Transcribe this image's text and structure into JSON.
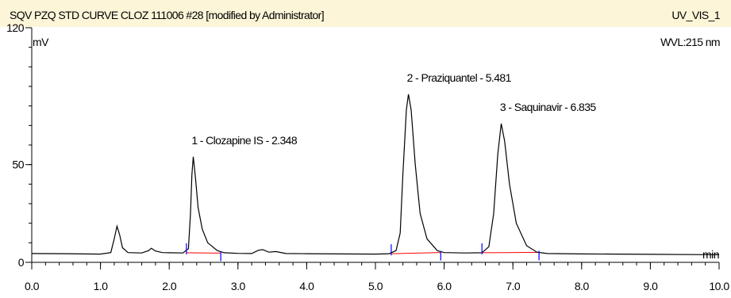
{
  "header": {
    "title": "SQV PZQ STD CURVE CLOZ 111006 #28 [modified by Administrator]",
    "channel": "UV_VIS_1",
    "wavelength": "WVL:215 nm"
  },
  "chart_data": {
    "type": "line",
    "title": "SQV PZQ STD CURVE CLOZ 111006 #28 [modified by Administrator]",
    "ylabel": "mV",
    "xlabel": "min",
    "xlim": [
      0.0,
      10.0
    ],
    "ylim": [
      0,
      120
    ],
    "x_ticks": [
      0.0,
      1.0,
      2.0,
      3.0,
      4.0,
      5.0,
      6.0,
      7.0,
      8.0,
      9.0,
      10.0
    ],
    "x_tick_labels": [
      "0.0",
      "1.0",
      "2.0",
      "3.0",
      "4.0",
      "5.0",
      "6.0",
      "7.0",
      "8.0",
      "9.0",
      "10.0"
    ],
    "y_ticks": [
      0,
      50,
      120
    ],
    "y_tick_labels": [
      "0",
      "50",
      "120"
    ],
    "grid": false,
    "colors": {
      "trace": "#000000",
      "baseline": "#ff0000",
      "marker": "#0000ff",
      "axis": "#000000"
    },
    "series": [
      {
        "name": "UV_VIS_1",
        "points": [
          [
            0.0,
            4.5
          ],
          [
            0.5,
            4.4
          ],
          [
            1.0,
            4.2
          ],
          [
            1.15,
            5.0
          ],
          [
            1.2,
            12.0
          ],
          [
            1.24,
            18.5
          ],
          [
            1.28,
            14.0
          ],
          [
            1.32,
            7.5
          ],
          [
            1.4,
            5.0
          ],
          [
            1.6,
            4.8
          ],
          [
            1.7,
            6.0
          ],
          [
            1.74,
            7.2
          ],
          [
            1.8,
            5.8
          ],
          [
            1.9,
            5.0
          ],
          [
            2.0,
            4.9
          ],
          [
            2.2,
            4.8
          ],
          [
            2.28,
            7.0
          ],
          [
            2.31,
            25.0
          ],
          [
            2.33,
            45.0
          ],
          [
            2.35,
            54.0
          ],
          [
            2.38,
            44.0
          ],
          [
            2.42,
            28.0
          ],
          [
            2.48,
            17.0
          ],
          [
            2.56,
            10.0
          ],
          [
            2.7,
            6.0
          ],
          [
            2.8,
            4.9
          ],
          [
            3.0,
            4.6
          ],
          [
            3.2,
            4.5
          ],
          [
            3.3,
            6.2
          ],
          [
            3.36,
            6.5
          ],
          [
            3.45,
            5.2
          ],
          [
            3.55,
            5.5
          ],
          [
            3.7,
            4.5
          ],
          [
            4.0,
            4.4
          ],
          [
            4.5,
            4.3
          ],
          [
            5.0,
            4.2
          ],
          [
            5.2,
            4.4
          ],
          [
            5.3,
            6.0
          ],
          [
            5.36,
            15.0
          ],
          [
            5.4,
            45.0
          ],
          [
            5.45,
            78.0
          ],
          [
            5.48,
            86.0
          ],
          [
            5.52,
            78.0
          ],
          [
            5.58,
            50.0
          ],
          [
            5.65,
            25.0
          ],
          [
            5.75,
            12.0
          ],
          [
            5.9,
            6.0
          ],
          [
            6.0,
            5.0
          ],
          [
            6.3,
            4.8
          ],
          [
            6.55,
            4.9
          ],
          [
            6.65,
            8.0
          ],
          [
            6.72,
            25.0
          ],
          [
            6.78,
            55.0
          ],
          [
            6.83,
            71.0
          ],
          [
            6.88,
            62.0
          ],
          [
            6.95,
            40.0
          ],
          [
            7.05,
            20.0
          ],
          [
            7.2,
            8.5
          ],
          [
            7.35,
            5.2
          ],
          [
            7.5,
            4.5
          ],
          [
            8.0,
            4.3
          ],
          [
            8.5,
            4.2
          ],
          [
            9.0,
            4.1
          ],
          [
            10.0,
            3.9
          ]
        ]
      }
    ],
    "peaks": [
      {
        "label": "1 - Clozapine IS - 2.348",
        "rt": 2.348,
        "apex": 54.0,
        "start": 2.25,
        "end": 2.75,
        "y_start": 4.9,
        "y_end": 4.7
      },
      {
        "label": "2 - Praziquantel - 5.481",
        "rt": 5.481,
        "apex": 86.0,
        "start": 5.23,
        "end": 5.95,
        "y_start": 4.4,
        "y_end": 5.0
      },
      {
        "label": "3 - Saquinavir - 6.835",
        "rt": 6.835,
        "apex": 71.0,
        "start": 6.55,
        "end": 7.38,
        "y_start": 4.9,
        "y_end": 5.1
      }
    ]
  }
}
